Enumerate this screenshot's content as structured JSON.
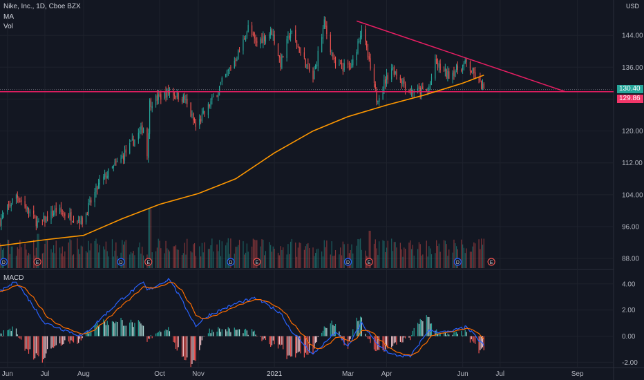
{
  "header": {
    "symbol_line": "Nike, Inc., 1D, Cboe BZX",
    "ma_label": "MA",
    "vol_label": "Vol",
    "currency": "USD"
  },
  "macd_label": "MACD",
  "price_tags": {
    "last": "130.40",
    "level": "129.86",
    "last_color": "#26a69a",
    "level_color": "#f23669"
  },
  "colors": {
    "background": "#131722",
    "up": "#26a69a",
    "down": "#ef5350",
    "ma": "#ff9800",
    "trendline": "#e91e63",
    "macd_line": "#2962ff",
    "signal_line": "#ff6d00"
  },
  "markers": [
    {
      "label": "D",
      "date": "2020-05-29"
    },
    {
      "label": "E",
      "date": "2020-06-25"
    },
    {
      "label": "D",
      "date": "2020-08-31"
    },
    {
      "label": "E",
      "date": "2020-09-22"
    },
    {
      "label": "D",
      "date": "2020-11-27"
    },
    {
      "label": "E",
      "date": "2020-12-18"
    },
    {
      "label": "D",
      "date": "2021-03-01"
    },
    {
      "label": "E",
      "date": "2021-03-18"
    },
    {
      "label": "D",
      "date": "2021-05-28"
    },
    {
      "label": "E",
      "date": "2021-06-24"
    }
  ],
  "chart_data": {
    "type": "candlestick",
    "x_ticks": [
      "Jun",
      "Jul",
      "Aug",
      "Oct",
      "Nov",
      "2021",
      "Mar",
      "Apr",
      "Jun",
      "Jul",
      "Sep"
    ],
    "x_tick_dates": [
      "2020-06-01",
      "2020-07-01",
      "2020-08-01",
      "2020-10-01",
      "2020-11-01",
      "2021-01-01",
      "2021-03-01",
      "2021-04-01",
      "2021-06-01",
      "2021-07-01",
      "2021-09-01"
    ],
    "x_range": [
      "2020-05-26",
      "2021-09-30"
    ],
    "y_ticks": [
      "88.00",
      "96.00",
      "104.00",
      "112.00",
      "120.00",
      "128.00",
      "136.00",
      "144.00"
    ],
    "y_range": [
      85.6,
      152.0
    ],
    "macd_ticks": [
      "4.00",
      "2.00",
      "0.00",
      "-2.00"
    ],
    "macd_range": [
      -2.3,
      5.0
    ],
    "horizontal_level": 129.86,
    "trendline": [
      {
        "date": "2021-03-08",
        "value": 147.6
      },
      {
        "date": "2021-08-22",
        "value": 129.9
      }
    ],
    "ma_points": [
      [
        "2020-05-26",
        91.2
      ],
      [
        "2020-07-01",
        92.7
      ],
      [
        "2020-08-01",
        93.8
      ],
      [
        "2020-09-01",
        98.0
      ],
      [
        "2020-10-01",
        101.6
      ],
      [
        "2020-11-01",
        104.3
      ],
      [
        "2020-12-01",
        108.0
      ],
      [
        "2021-01-01",
        114.5
      ],
      [
        "2021-02-01",
        120.0
      ],
      [
        "2021-03-01",
        123.6
      ],
      [
        "2021-04-01",
        126.5
      ],
      [
        "2021-05-01",
        129.0
      ],
      [
        "2021-06-01",
        132.0
      ],
      [
        "2021-06-18",
        134.0
      ]
    ],
    "price_path": [
      [
        "2020-05-26",
        97.5
      ],
      [
        "2020-06-08",
        104.0
      ],
      [
        "2020-06-26",
        96.5
      ],
      [
        "2020-07-10",
        100.0
      ],
      [
        "2020-07-31",
        97.5
      ],
      [
        "2020-08-14",
        107.0
      ],
      [
        "2020-08-31",
        113.0
      ],
      [
        "2020-09-18",
        121.0
      ],
      [
        "2020-09-21",
        114.0
      ],
      [
        "2020-09-23",
        127.0
      ],
      [
        "2020-10-09",
        130.0
      ],
      [
        "2020-10-21",
        128.0
      ],
      [
        "2020-10-30",
        121.0
      ],
      [
        "2020-11-09",
        126.0
      ],
      [
        "2020-12-04",
        140.0
      ],
      [
        "2020-12-11",
        146.0
      ],
      [
        "2020-12-17",
        142.0
      ],
      [
        "2020-12-30",
        145.0
      ],
      [
        "2021-01-06",
        137.0
      ],
      [
        "2021-01-14",
        145.0
      ],
      [
        "2021-02-01",
        133.0
      ],
      [
        "2021-02-10",
        147.0
      ],
      [
        "2021-02-19",
        136.0
      ],
      [
        "2021-03-04",
        136.0
      ],
      [
        "2021-03-12",
        146.0
      ],
      [
        "2021-03-24",
        128.0
      ],
      [
        "2021-04-05",
        136.0
      ],
      [
        "2021-04-20",
        130.0
      ],
      [
        "2021-05-04",
        130.0
      ],
      [
        "2021-05-10",
        137.0
      ],
      [
        "2021-05-20",
        134.0
      ],
      [
        "2021-06-04",
        137.0
      ],
      [
        "2021-06-18",
        130.4
      ]
    ],
    "macd_path": [
      [
        "2020-05-26",
        3.4
      ],
      [
        "2020-06-08",
        4.2
      ],
      [
        "2020-07-01",
        1.0
      ],
      [
        "2020-07-31",
        0.0
      ],
      [
        "2020-08-31",
        2.8
      ],
      [
        "2020-09-18",
        4.1
      ],
      [
        "2020-09-21",
        3.5
      ],
      [
        "2020-10-09",
        4.4
      ],
      [
        "2020-10-30",
        0.8
      ],
      [
        "2020-11-09",
        1.6
      ],
      [
        "2020-12-04",
        2.6
      ],
      [
        "2020-12-17",
        2.9
      ],
      [
        "2021-01-06",
        1.8
      ],
      [
        "2021-01-14",
        0.5
      ],
      [
        "2021-02-01",
        -1.4
      ],
      [
        "2021-02-19",
        0.3
      ],
      [
        "2021-03-01",
        -0.8
      ],
      [
        "2021-03-12",
        1.0
      ],
      [
        "2021-03-24",
        -0.6
      ],
      [
        "2021-04-05",
        -1.4
      ],
      [
        "2021-04-20",
        -1.6
      ],
      [
        "2021-05-04",
        0.4
      ],
      [
        "2021-05-20",
        0.3
      ],
      [
        "2021-06-04",
        0.7
      ],
      [
        "2021-06-18",
        -0.7
      ]
    ],
    "volume_spikes": [
      {
        "date": "2020-06-26",
        "rel": 0.55
      },
      {
        "date": "2020-09-23",
        "rel": 0.95
      },
      {
        "date": "2020-12-18",
        "rel": 0.45
      },
      {
        "date": "2021-03-19",
        "rel": 0.6
      },
      {
        "date": "2021-06-25",
        "rel": 0.35
      }
    ],
    "last_date": "2021-06-18"
  }
}
